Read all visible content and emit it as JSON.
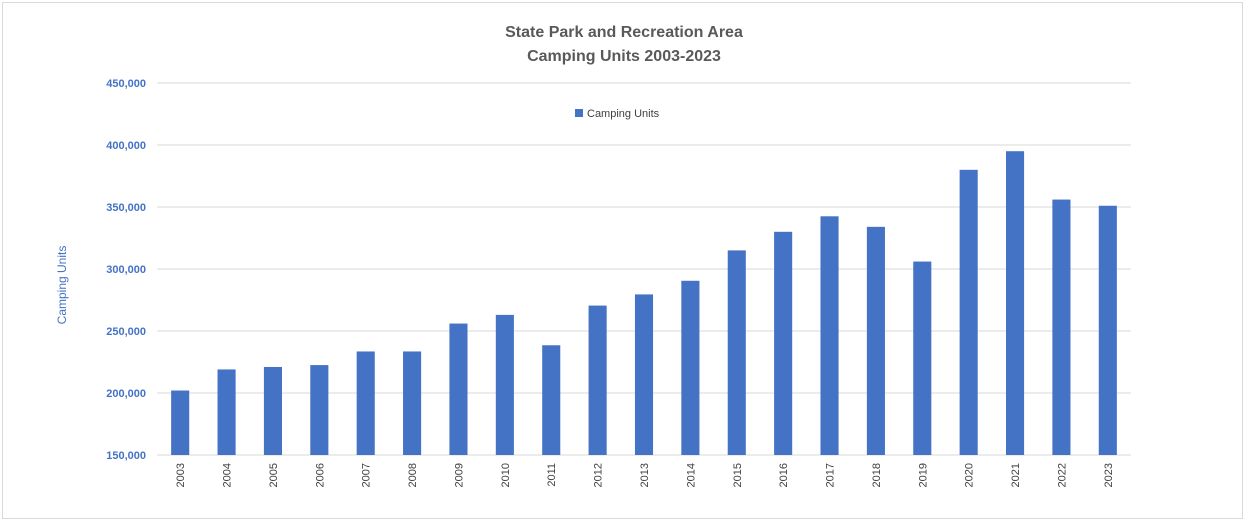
{
  "chart_data": {
    "type": "bar",
    "title_line1": "State Park and Recreation Area",
    "title_line2": "Camping Units 2003-2023",
    "ylabel": "Camping Units",
    "xlabel": "",
    "ylim": [
      150000,
      450000
    ],
    "yticks": [
      150000,
      200000,
      250000,
      300000,
      350000,
      400000,
      450000
    ],
    "ytick_labels": [
      "150,000",
      "200,000",
      "250,000",
      "300,000",
      "350,000",
      "400,000",
      "450,000"
    ],
    "categories": [
      "2003",
      "2004",
      "2005",
      "2006",
      "2007",
      "2008",
      "2009",
      "2010",
      "2011",
      "2012",
      "2013",
      "2014",
      "2015",
      "2016",
      "2017",
      "2018",
      "2019",
      "2020",
      "2021",
      "2022",
      "2023"
    ],
    "series": [
      {
        "name": "Camping Units",
        "color": "#4472c4",
        "values": [
          202000,
          219000,
          221000,
          222500,
          233500,
          233500,
          256000,
          263000,
          238500,
          270500,
          279500,
          290500,
          315000,
          330000,
          342500,
          334000,
          306000,
          380000,
          395000,
          356000,
          351000
        ]
      }
    ],
    "grid": true,
    "legend_position": "top-center"
  }
}
